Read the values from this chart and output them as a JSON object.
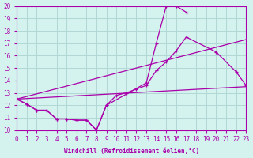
{
  "xlabel": "Windchill (Refroidissement éolien,°C)",
  "background_color": "#d4f3ee",
  "grid_color": "#b0d8d4",
  "line_color": "#aa00aa",
  "x_min": 0,
  "x_max": 23,
  "y_min": 10,
  "y_max": 20,
  "series1_x": [
    0,
    1,
    2,
    3,
    4,
    5,
    6,
    7,
    8,
    9,
    13,
    14,
    15,
    16,
    17
  ],
  "series1_y": [
    12.5,
    12.1,
    11.6,
    11.6,
    10.9,
    10.9,
    10.8,
    10.8,
    10.0,
    12.0,
    13.8,
    17.0,
    20.0,
    20.0,
    19.5
  ],
  "series2_x": [
    0,
    1,
    2,
    3,
    4,
    5,
    6,
    7,
    8,
    9,
    10,
    11,
    12,
    13,
    14,
    15,
    16,
    17,
    20,
    22,
    23
  ],
  "series2_y": [
    12.5,
    12.1,
    11.6,
    11.6,
    10.9,
    10.9,
    10.8,
    10.8,
    10.0,
    12.0,
    12.8,
    13.0,
    13.3,
    13.6,
    14.8,
    15.5,
    16.4,
    17.5,
    16.3,
    14.7,
    13.6
  ],
  "series3_x": [
    0,
    23
  ],
  "series3_y": [
    12.5,
    13.5
  ],
  "series4_x": [
    0,
    23
  ],
  "series4_y": [
    12.5,
    17.3
  ]
}
